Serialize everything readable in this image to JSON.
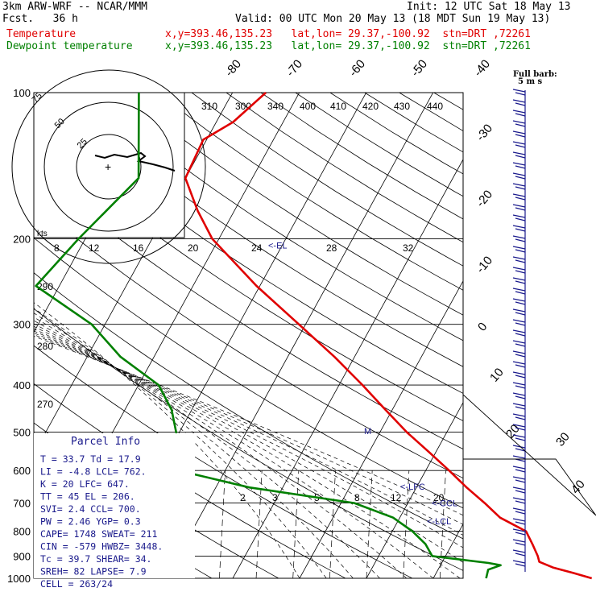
{
  "header": {
    "model": "3km ARW-WRF -- NCAR/MMM",
    "init": "Init: 12 UTC Sat 18 May 13",
    "fcst": "Fcst.   36 h",
    "valid": "Valid: 00 UTC Mon 20 May 13 (18 MDT Sun 19 May 13)",
    "temp_label": "Temperature",
    "temp_loc": "x,y=393.46,135.23   lat,lon= 29.37,-100.92  stn=DRT ,72261",
    "dew_label": "Dewpoint temperature",
    "dew_loc": "x,y=393.46,135.23   lat,lon= 29.37,-100.92  stn=DRT ,72261"
  },
  "colors": {
    "temperature": "#e00000",
    "dewpoint": "#008000",
    "info": "#1a1a8c",
    "wind": "#1a1a8c"
  },
  "chart_data": {
    "type": "line",
    "subtype": "skew-T log-P",
    "x_axis": "temperature (°C, skewed)",
    "y_axis": "pressure (hPa, log scale)",
    "ylim": [
      1000,
      100
    ],
    "pressure_levels": [
      100,
      200,
      300,
      400,
      500,
      600,
      700,
      800,
      900,
      1000
    ],
    "temp_axis_labels": [
      "-80",
      "-70",
      "-60",
      "-50",
      "-40",
      "-30",
      "-20",
      "-10",
      "0",
      "10",
      "20",
      "30",
      "40"
    ],
    "theta_labels": [
      "310",
      "300",
      "340",
      "400",
      "410",
      "420",
      "430",
      "440"
    ],
    "mixing_ratio_labels_top": [
      "8",
      "12",
      "16",
      "20",
      "24",
      "28",
      "32"
    ],
    "mixing_ratio_labels_low": [
      "2",
      "3",
      "5",
      "8",
      "12",
      "20"
    ],
    "theta_side_labels": [
      "290",
      "280",
      "270"
    ],
    "series": [
      {
        "name": "Temperature",
        "points": [
          {
            "p": 1000,
            "t": 33.7
          },
          {
            "p": 975,
            "t": 30.5
          },
          {
            "p": 950,
            "t": 27.0
          },
          {
            "p": 925,
            "t": 24.5
          },
          {
            "p": 900,
            "t": 23.8
          },
          {
            "p": 850,
            "t": 22.0
          },
          {
            "p": 800,
            "t": 20.0
          },
          {
            "p": 750,
            "t": 15.0
          },
          {
            "p": 700,
            "t": 11.5
          },
          {
            "p": 650,
            "t": 7.5
          },
          {
            "p": 600,
            "t": 3.5
          },
          {
            "p": 550,
            "t": -1.0
          },
          {
            "p": 500,
            "t": -6.0
          },
          {
            "p": 450,
            "t": -11.0
          },
          {
            "p": 400,
            "t": -16.5
          },
          {
            "p": 350,
            "t": -23.0
          },
          {
            "p": 300,
            "t": -31.0
          },
          {
            "p": 250,
            "t": -40.5
          },
          {
            "p": 200,
            "t": -51.0
          },
          {
            "p": 175,
            "t": -55.5
          },
          {
            "p": 150,
            "t": -60.0
          },
          {
            "p": 125,
            "t": -60.5
          },
          {
            "p": 115,
            "t": -57.5
          },
          {
            "p": 100,
            "t": -55.0
          }
        ]
      },
      {
        "name": "Dewpoint temperature",
        "points": [
          {
            "p": 1000,
            "t": 17.9
          },
          {
            "p": 960,
            "t": 17.5
          },
          {
            "p": 940,
            "t": 19.0
          },
          {
            "p": 930,
            "t": 17.0
          },
          {
            "p": 900,
            "t": 8.0
          },
          {
            "p": 850,
            "t": 6.0
          },
          {
            "p": 800,
            "t": 3.0
          },
          {
            "p": 750,
            "t": -1.0
          },
          {
            "p": 700,
            "t": -8.0
          },
          {
            "p": 650,
            "t": -25.0
          },
          {
            "p": 600,
            "t": -37.0
          },
          {
            "p": 550,
            "t": -38.5
          },
          {
            "p": 500,
            "t": -40.5
          },
          {
            "p": 450,
            "t": -43.0
          },
          {
            "p": 400,
            "t": -47.0
          },
          {
            "p": 350,
            "t": -55.0
          },
          {
            "p": 300,
            "t": -62.0
          },
          {
            "p": 250,
            "t": -73.5
          },
          {
            "p": 200,
            "t": -71.0
          },
          {
            "p": 150,
            "t": -67.0
          },
          {
            "p": 100,
            "t": -74.0
          }
        ]
      }
    ],
    "markers": [
      {
        "label": "<-EL",
        "p": 206
      },
      {
        "label": "<-LFC",
        "p": 647
      },
      {
        "label": "<-CCL",
        "p": 700
      },
      {
        "label": "<-LCL",
        "p": 762
      },
      {
        "label": "M",
        "p": 497
      }
    ]
  },
  "parcel_info": {
    "title": "Parcel Info",
    "rows": [
      "T  =   33.7  Td =  17.9",
      "LI =   -4.8  LCL=  762.",
      "K  =     20  LFC=  647.",
      "TT =     45  EL =  206.",
      "SVI=    2.4  CCL=  700.",
      "PW =   2.46  YGP=   0.3",
      "CAPE=  1748  SWEAT=  211",
      "CIN =  -579  HWBZ= 3448.",
      "Tc =   39.7  SHEAR=  34.",
      "SREH=    82  LAPSE=  7.9",
      "CELL = 263/24"
    ]
  },
  "hodograph": {
    "units": "kts",
    "ring_labels": [
      "25",
      "50",
      "75"
    ]
  },
  "wind_legend": {
    "line1": "Full barb:",
    "line2": "5 m s"
  },
  "side_labels": {
    "t30": "30",
    "t40": "40"
  }
}
